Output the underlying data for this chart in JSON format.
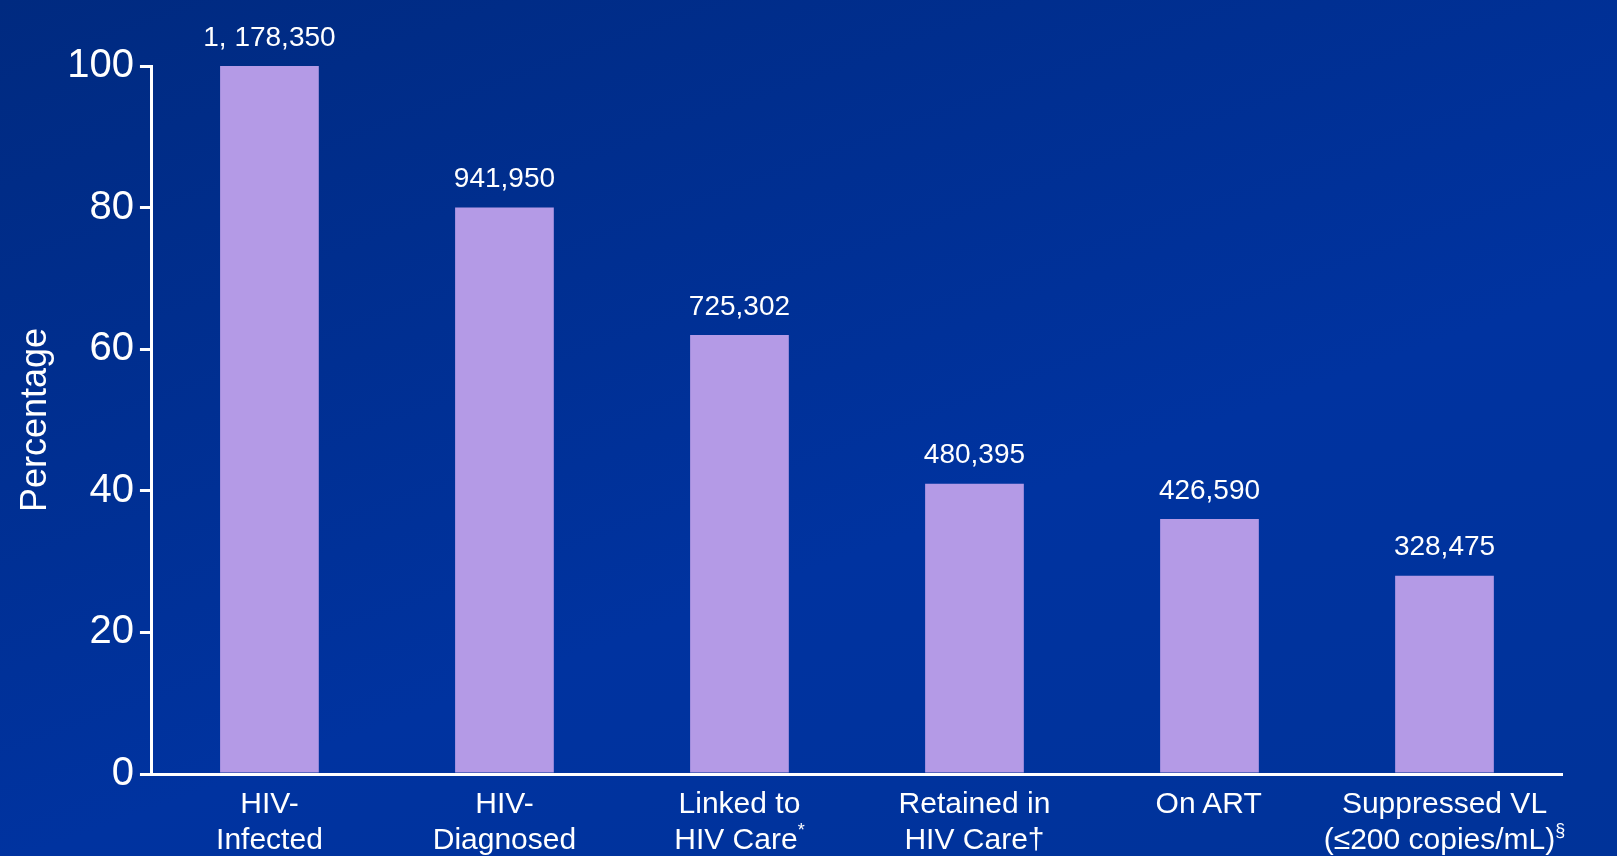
{
  "chart_data": {
    "type": "bar",
    "ylabel": "Percentage",
    "categories": [
      "HIV-\nInfected",
      "HIV-\nDiagnosed",
      "Linked to\nHIV Care$^{*}$",
      "Retained in\nHIV Care†",
      "On ART",
      "Suppressed VL\n(≤200 copies/mL)$^{§}$"
    ],
    "values": [
      100,
      80,
      62,
      41,
      36,
      28
    ],
    "annotations": [
      {
        "text": "1, 178,350",
        "x": "HIV-\nInfected",
        "y": 100
      },
      {
        "text": "941,950",
        "x": "HIV-\nDiagnosed",
        "y": 80
      },
      {
        "text": "725,302",
        "x": "Linked to\nHIV Care$^{*}$",
        "y": 62
      },
      {
        "text": "480,395",
        "x": "Retained in\nHIV Care†",
        "y": 41
      },
      {
        "text": "426,590",
        "x": "On ART",
        "y": 36
      },
      {
        "text": "328,475",
        "x": "Suppressed VL\n(≤200 copies/mL)$^{§}$",
        "y": 28
      }
    ],
    "color": "#b49ae6",
    "ylim": [
      0,
      100
    ],
    "yticks": [
      0,
      20,
      40,
      60,
      80,
      100
    ],
    "grid": false,
    "legend": false
  }
}
